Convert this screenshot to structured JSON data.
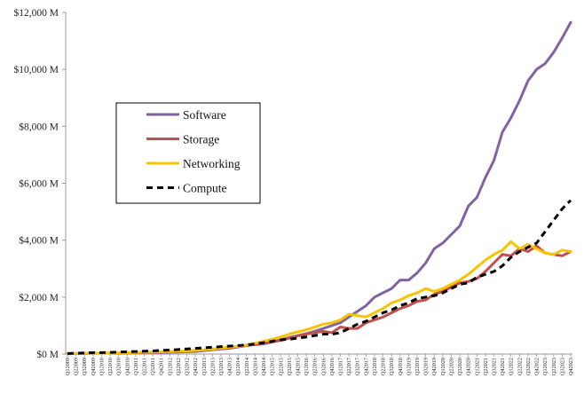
{
  "chart_data": {
    "type": "line",
    "title": "",
    "xlabel": "",
    "ylabel": "",
    "ylim": [
      0,
      12000
    ],
    "y_ticks": [
      0,
      2000,
      4000,
      6000,
      8000,
      10000,
      12000
    ],
    "y_tick_labels": [
      "$0 M",
      "$2,000 M",
      "$4,000 M",
      "$6,000 M",
      "$8,000 M",
      "$10,000 M",
      "$12,000 M"
    ],
    "grid": false,
    "legend_position": "left",
    "x": [
      "Q1 2009",
      "Q2 2009",
      "Q3 2009",
      "Q4 2009",
      "Q1 2010",
      "Q2 2010",
      "Q3 2010",
      "Q4 2010",
      "Q1 2011",
      "Q2 2011",
      "Q3 2011",
      "Q4 2011",
      "Q1 2012",
      "Q2 2012",
      "Q3 2012",
      "Q4 2012",
      "Q1 2013",
      "Q2 2013",
      "Q3 2013",
      "Q4 2013",
      "Q1 2014",
      "Q2 2014",
      "Q3 2014",
      "Q4 2014",
      "Q1 2015",
      "Q2 2015",
      "Q3 2015",
      "Q4 2015",
      "Q1 2016",
      "Q2 2016",
      "Q3 2016",
      "Q4 2016",
      "Q1 2017",
      "Q2 2017",
      "Q3 2017",
      "Q4 2017",
      "Q1 2018",
      "Q2 2018",
      "Q3 2018",
      "Q4 2018",
      "Q1 2019",
      "Q2 2019",
      "Q3 2019",
      "Q4 2019",
      "Q1 2020",
      "Q2 2020",
      "Q3 2020",
      "Q4 2020",
      "Q1 2021",
      "Q2 2021",
      "Q3 2021",
      "Q4 2021",
      "Q1 2022",
      "Q2 2022",
      "Q3 2022",
      "Q4 2022",
      "Q1 2023",
      "Q2 2023",
      "Q3 2023",
      "Q4 2023"
    ],
    "x_tick_labels": [
      "Q1 2009",
      "Q2 2009",
      "Q3 2009",
      "Q4 2009",
      "Q1 2010",
      "Q2 2010",
      "Q3 2010",
      "Q4 2010",
      "Q1 2011",
      "Q2 2011",
      "Q3 2011",
      "Q4 2011",
      "Q1 2012",
      "Q2 2012",
      "Q3 2012",
      "Q4 2012",
      "Q1 2013",
      "Q2 2013",
      "Q3 2013",
      "Q4 2013",
      "Q1 2014",
      "Q2 2014",
      "Q3 2014",
      "Q4 2014",
      "Q1 2015",
      "Q2 2015",
      "Q3 2015",
      "Q4 2015",
      "Q1 2016",
      "Q2 2016",
      "Q3 2016",
      "Q4 2016",
      "Q1 2017",
      "Q2 2017",
      "Q3 2017",
      "Q4 2017",
      "Q1 2018",
      "Q2 2018",
      "Q3 2018",
      "Q4 2018",
      "Q1 2019",
      "Q2 2019",
      "Q3 2019",
      "Q4 2019",
      "Q1 2020",
      "Q2 2020",
      "Q3 2020",
      "Q4 2020",
      "Q1 2021",
      "Q2 2021",
      "Q3 2021",
      "Q4 2021",
      "Q1 2022",
      "Q2 2022",
      "Q3 2022",
      "Q4 2022",
      "Q1 2023",
      "Q2 2023",
      "Q3 2023",
      "Q4 2023"
    ],
    "series": [
      {
        "name": "Software",
        "color": "#8064a2",
        "dash": "solid",
        "values": [
          10,
          15,
          20,
          25,
          30,
          30,
          35,
          40,
          45,
          50,
          55,
          60,
          65,
          70,
          80,
          90,
          120,
          150,
          180,
          200,
          250,
          300,
          330,
          360,
          420,
          500,
          580,
          650,
          720,
          800,
          900,
          1000,
          1100,
          1300,
          1500,
          1700,
          2000,
          2150,
          2300,
          2600,
          2600,
          2850,
          3200,
          3700,
          3900,
          4200,
          4500,
          5200,
          5500,
          6200,
          6800,
          7800,
          8300,
          8900,
          9600,
          10000,
          10200,
          10600,
          11100,
          11650
        ]
      },
      {
        "name": "Storage",
        "color": "#c0504d",
        "dash": "solid",
        "values": [
          10,
          20,
          25,
          30,
          30,
          35,
          40,
          45,
          50,
          55,
          60,
          70,
          80,
          90,
          100,
          120,
          140,
          170,
          200,
          230,
          260,
          300,
          340,
          380,
          430,
          480,
          560,
          640,
          700,
          750,
          800,
          750,
          950,
          900,
          900,
          1100,
          1200,
          1300,
          1450,
          1600,
          1700,
          1850,
          1900,
          2100,
          2200,
          2350,
          2500,
          2550,
          2650,
          2900,
          3200,
          3500,
          3450,
          3700,
          3600,
          3800,
          3550,
          3500,
          3450,
          3600
        ]
      },
      {
        "name": "Networking",
        "color": "#f6c400",
        "dash": "solid",
        "values": [
          15,
          20,
          25,
          30,
          35,
          40,
          45,
          50,
          60,
          65,
          70,
          80,
          90,
          100,
          110,
          130,
          150,
          180,
          210,
          240,
          270,
          320,
          380,
          450,
          520,
          600,
          700,
          780,
          850,
          950,
          1050,
          1100,
          1200,
          1400,
          1350,
          1300,
          1450,
          1600,
          1800,
          1900,
          2050,
          2150,
          2300,
          2200,
          2300,
          2450,
          2600,
          2800,
          3050,
          3300,
          3500,
          3650,
          3950,
          3700,
          3850,
          3700,
          3550,
          3500,
          3650,
          3600
        ]
      },
      {
        "name": "Compute",
        "color": "#000000",
        "dash": "dashed",
        "values": [
          20,
          30,
          40,
          50,
          50,
          60,
          70,
          80,
          90,
          100,
          110,
          130,
          140,
          160,
          180,
          200,
          220,
          240,
          260,
          280,
          300,
          320,
          360,
          400,
          450,
          500,
          520,
          560,
          600,
          650,
          700,
          700,
          750,
          900,
          1050,
          1150,
          1300,
          1450,
          1550,
          1700,
          1800,
          1950,
          2000,
          2050,
          2150,
          2300,
          2450,
          2500,
          2700,
          2800,
          2900,
          3100,
          3400,
          3600,
          3750,
          3900,
          4300,
          4700,
          5100,
          5400
        ]
      }
    ]
  }
}
